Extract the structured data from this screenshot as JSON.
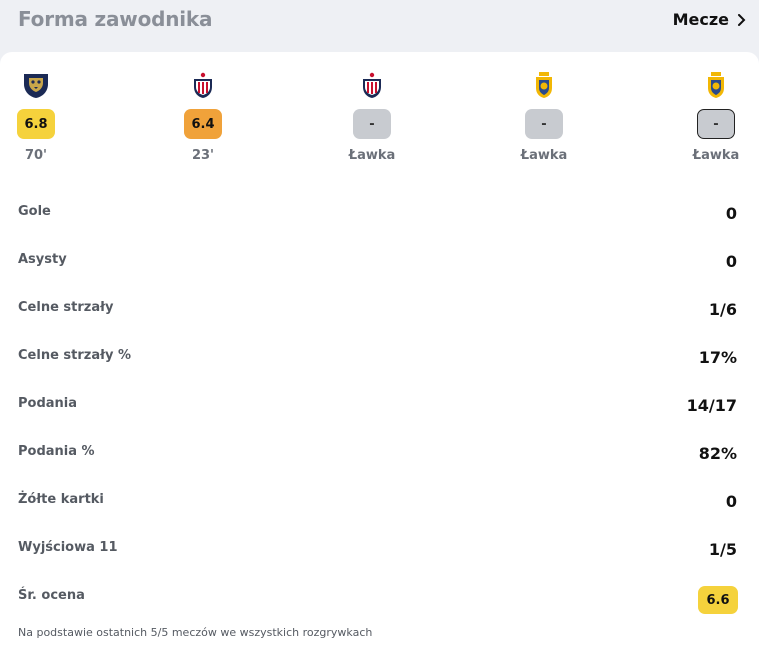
{
  "header": {
    "title": "Forma zawodnika",
    "matches_link": "Mecze"
  },
  "matches": [
    {
      "team_icon": "pumas-crest",
      "rating": "6.8",
      "rating_color": "#f5d23c",
      "minute": "70'"
    },
    {
      "team_icon": "chivas-crest",
      "rating": "6.4",
      "rating_color": "#f0a23a",
      "minute": "23'"
    },
    {
      "team_icon": "chivas-crest",
      "rating": "-",
      "rating_color": "#c8cbd0",
      "minute": "Ławka"
    },
    {
      "team_icon": "tigres-crest",
      "rating": "-",
      "rating_color": "#c8cbd0",
      "minute": "Ławka"
    },
    {
      "team_icon": "tigres-crest",
      "rating": "-",
      "rating_color": "#c8cbd0",
      "minute": "Ławka"
    }
  ],
  "stats": [
    {
      "label": "Gole",
      "value": "0"
    },
    {
      "label": "Asysty",
      "value": "0"
    },
    {
      "label": "Celne strzały",
      "value": "1/6"
    },
    {
      "label": "Celne strzały %",
      "value": "17%"
    },
    {
      "label": "Podania",
      "value": "14/17"
    },
    {
      "label": "Podania %",
      "value": "82%"
    },
    {
      "label": "Żółte kartki",
      "value": "0"
    },
    {
      "label": "Wyjściowa 11",
      "value": "1/5"
    },
    {
      "label": "Śr. ocena",
      "value": "6.6"
    }
  ],
  "footnote": "Na podstawie ostatnich 5/5 meczów we wszystkich rozgrywkach"
}
